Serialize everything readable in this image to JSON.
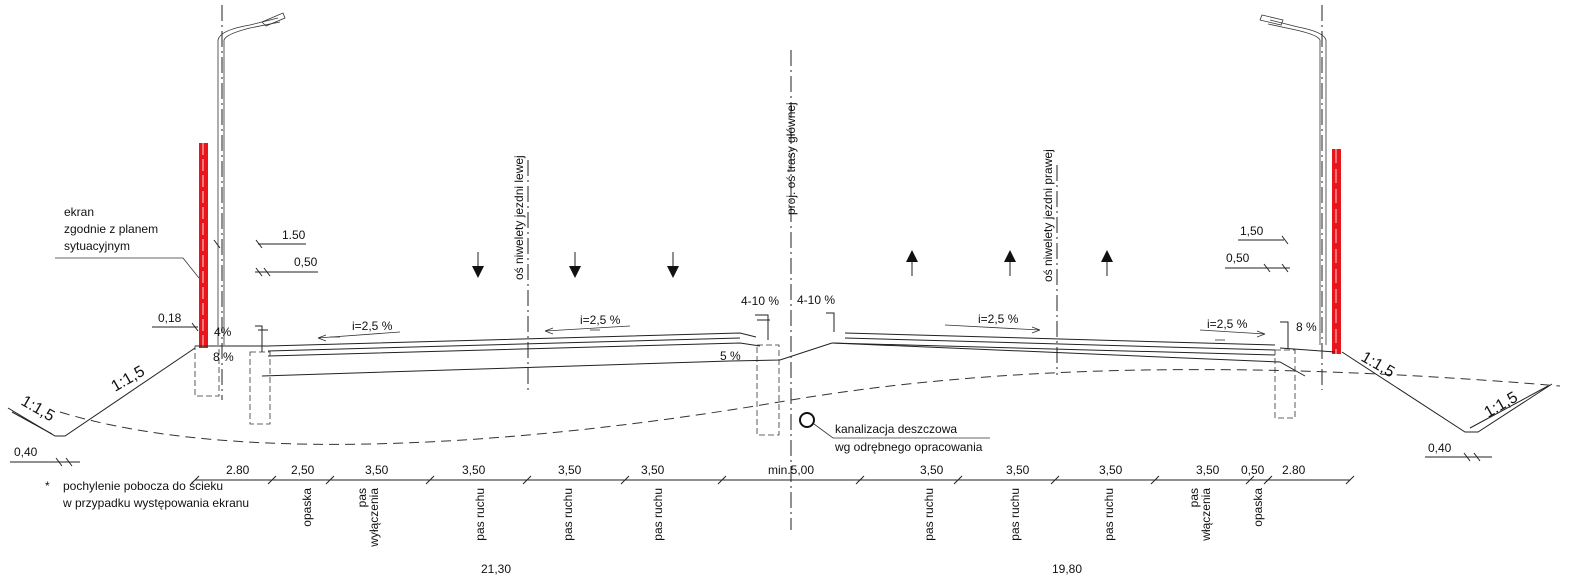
{
  "labels": {
    "ekran_line1": "ekran",
    "ekran_line2": "zgodnie z planem",
    "ekran_line3": "sytuacyjnym",
    "axis_main": "proj. oś trasy głównej",
    "axis_left": "oś niwelety jezdni lewej",
    "axis_right": "oś niwelety jezdni prawej",
    "drain_line1": "kanalizacja deszczowa",
    "drain_line2": "wg odrębnego opracowania",
    "note_star": "*",
    "note_line1": "pochylenie pobocza do ścieku",
    "note_line2": "w przypadku występowania ekranu"
  },
  "slopes": {
    "left_embankment": "1:1,5",
    "left_ditch": "1:1,5",
    "right_embankment": "1:1,5",
    "right_ditch": "1:1,5",
    "left_lane_a": "i=2,5 %",
    "left_lane_b": "i=2,5 %",
    "right_lane_a": "i=2,5 %",
    "right_lane_b": "i=2,5 %",
    "left_shoulder": "4%",
    "left_shoulder_b": "8 %",
    "right_shoulder": "8 %",
    "median_left": "4-10 %",
    "median_right": "4-10 %",
    "median_fill": "5 %"
  },
  "dims": {
    "left_150": "1.50",
    "left_050": "0,50",
    "left_018": "0,18",
    "left_040": "0,40",
    "right_150": "1,50",
    "right_050": "0,50",
    "right_040": "0,40",
    "row": [
      "2.80",
      "2,50",
      "3,50",
      "3,50",
      "3,50",
      "3,50",
      "min.5,00",
      "3,50",
      "3,50",
      "3,50",
      "3,50",
      "0,50",
      "2.80"
    ],
    "total_left": "21,30",
    "total_right": "19,80"
  },
  "lanes": [
    "opaska",
    "pas\nwyłączenia",
    "pas ruchu",
    "pas ruchu",
    "pas ruchu",
    "pas ruchu",
    "pas ruchu",
    "pas ruchu",
    "pas\nwłączenia",
    "opaska"
  ],
  "colors": {
    "screen": "#e8161b",
    "line": "#222222"
  }
}
